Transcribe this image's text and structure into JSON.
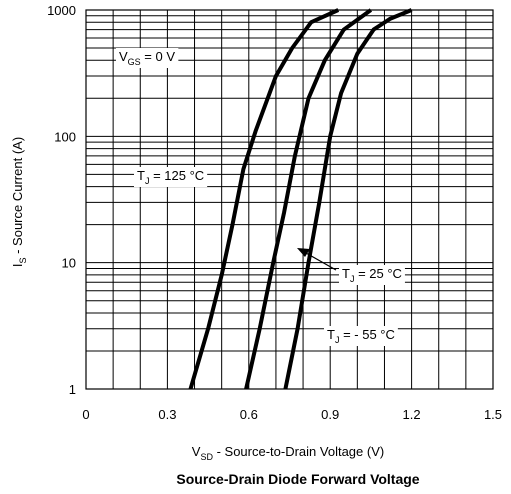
{
  "chart_data": {
    "type": "line",
    "title": "Source-Drain Diode Forward Voltage",
    "xlabel": {
      "main": "V",
      "sub": "SD",
      "rest": " - Source-to-Drain Voltage (V)"
    },
    "ylabel": {
      "main": "I",
      "sub": "S",
      "rest": " - Source Current (A)"
    },
    "xlim": [
      0,
      1.5
    ],
    "ylim": [
      1,
      1000
    ],
    "yscale": "log",
    "grid": true,
    "x_ticks": [
      0,
      0.3,
      0.6,
      0.9,
      1.2,
      1.5
    ],
    "x_tick_labels": [
      "0",
      "0.3",
      "0.6",
      "0.9",
      "1.2",
      "1.5"
    ],
    "y_ticks": [
      1,
      10,
      100,
      1000
    ],
    "y_tick_labels": [
      "1",
      "10",
      "100",
      "1000"
    ],
    "series": [
      {
        "name": "T_J = 125 °C",
        "x": [
          0.385,
          0.45,
          0.5,
          0.54,
          0.58,
          0.625,
          0.7,
          0.76,
          0.83,
          0.93
        ],
        "y": [
          1,
          3,
          8,
          20,
          55,
          110,
          300,
          500,
          800,
          1000
        ]
      },
      {
        "name": "T_J = 25 °C",
        "x": [
          0.59,
          0.64,
          0.69,
          0.73,
          0.77,
          0.82,
          0.88,
          0.95,
          1.05
        ],
        "y": [
          1,
          3,
          10,
          25,
          70,
          200,
          400,
          700,
          1000
        ]
      },
      {
        "name": "T_J = - 55 °C",
        "x": [
          0.735,
          0.78,
          0.82,
          0.86,
          0.9,
          0.94,
          1.0,
          1.06,
          1.12,
          1.2
        ],
        "y": [
          1,
          3,
          10,
          30,
          100,
          220,
          450,
          700,
          850,
          1000
        ]
      }
    ],
    "annotations": [
      {
        "main": "V",
        "sub": "GS",
        "rest": " = 0 V"
      },
      {
        "main": "T",
        "sub": "J",
        "rest": " = 125 °C"
      },
      {
        "main": "T",
        "sub": "J",
        "rest": " = 25 °C"
      },
      {
        "main": "T",
        "sub": "J",
        "rest": " = - 55 °C"
      }
    ]
  }
}
